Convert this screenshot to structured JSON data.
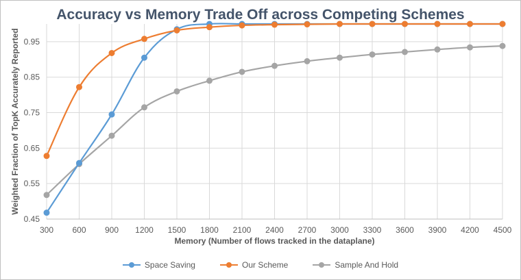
{
  "chart_data": {
    "type": "line",
    "title": "Accuracy vs Memory Trade Off across Competing Schemes",
    "xlabel": "Memory (Number of flows tracked in the dataplane)",
    "ylabel": "Weighted Fraction of TopK Accurately Reported",
    "x": [
      300,
      600,
      900,
      1200,
      1500,
      1800,
      2100,
      2400,
      2700,
      3000,
      3300,
      3600,
      3900,
      4200,
      4500
    ],
    "x_tick_labels": [
      "300",
      "600",
      "900",
      "1200",
      "1500",
      "1800",
      "2100",
      "2400",
      "2700",
      "3000",
      "3300",
      "3600",
      "3900",
      "4200",
      "4500"
    ],
    "ylim": [
      0.45,
      1.0
    ],
    "y_ticks": [
      0.45,
      0.55,
      0.65,
      0.75,
      0.85,
      0.95
    ],
    "y_tick_labels": [
      "0.45",
      "0.55",
      "0.65",
      "0.75",
      "0.85",
      "0.95"
    ],
    "grid": true,
    "legend_position": "bottom",
    "series": [
      {
        "name": "Space Saving",
        "color": "#5b9bd5",
        "values": [
          0.468,
          0.608,
          0.745,
          0.905,
          0.985,
          1.0,
          1.0,
          1.0,
          1.0,
          1.0,
          1.0,
          1.0,
          1.0,
          1.0,
          1.0
        ]
      },
      {
        "name": "Our Scheme",
        "color": "#ed7d31",
        "values": [
          0.628,
          0.822,
          0.918,
          0.958,
          0.982,
          0.991,
          0.996,
          0.998,
          0.999,
          1.0,
          1.0,
          1.0,
          1.0,
          1.0,
          1.0
        ]
      },
      {
        "name": "Sample And Hold",
        "color": "#a5a5a5",
        "values": [
          0.518,
          0.605,
          0.685,
          0.765,
          0.81,
          0.84,
          0.865,
          0.882,
          0.895,
          0.905,
          0.914,
          0.921,
          0.928,
          0.934,
          0.938
        ]
      }
    ]
  }
}
